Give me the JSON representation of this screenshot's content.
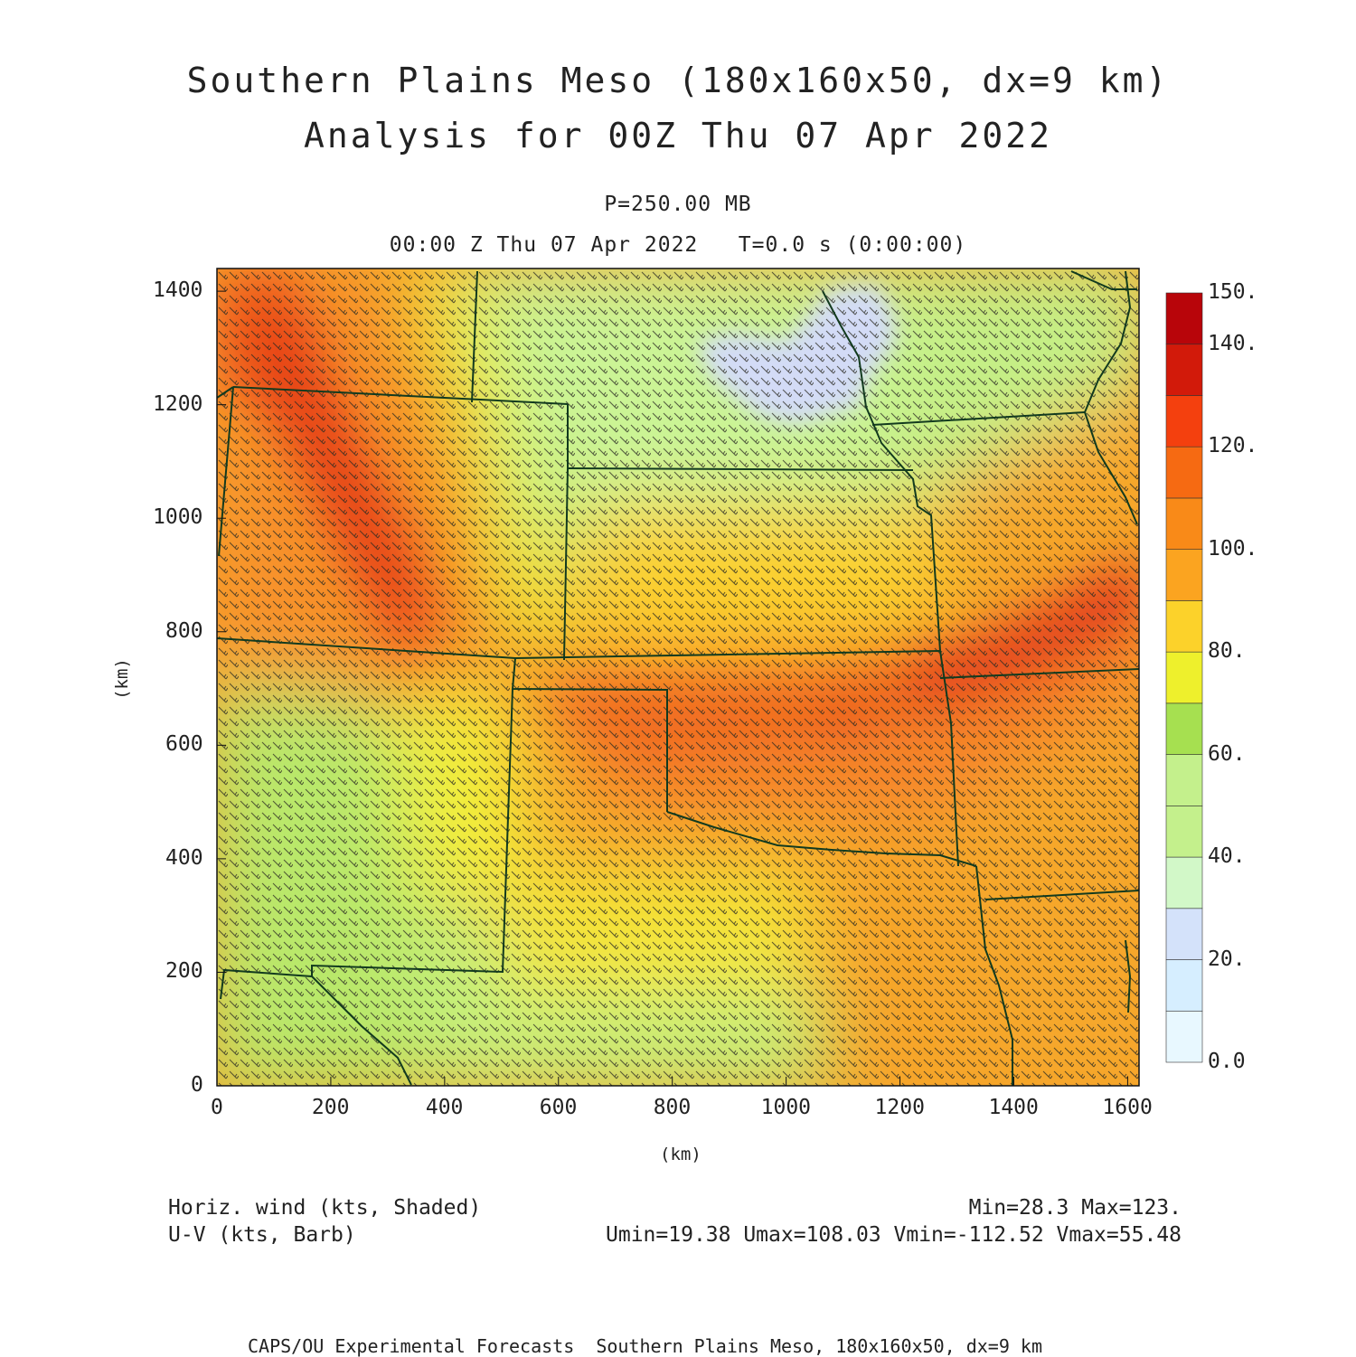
{
  "title": {
    "line1": "Southern Plains Meso (180x160x50, dx=9 km)",
    "line2": "Analysis for 00Z Thu 07 Apr 2022"
  },
  "level": "P=250.00 MB",
  "time": "00:00 Z Thu 07 Apr 2022   T=0.0 s (0:00:00)",
  "axes": {
    "x_label": "(km)",
    "y_label": "(km)",
    "x_ticks": [
      "0",
      "200",
      "400",
      "600",
      "800",
      "1000",
      "1200",
      "1400",
      "1600"
    ],
    "y_ticks": [
      "0",
      "200",
      "400",
      "600",
      "800",
      "1000",
      "1200",
      "1400"
    ],
    "x_range": [
      0,
      1620
    ],
    "y_range": [
      0,
      1440
    ]
  },
  "colorbar": {
    "labels": [
      "0.0",
      "20.",
      "40.",
      "60.",
      "80.",
      "100.",
      "120.",
      "140.",
      "150."
    ],
    "colors": [
      "#e8f8ff",
      "#d6eeff",
      "#d4e2fa",
      "#d2f8c8",
      "#c4f08c",
      "#a6e050",
      "#eef02c",
      "#fcd22a",
      "#fba420",
      "#f98a18",
      "#f66a12",
      "#f4400e",
      "#d21a0a",
      "#b8050a"
    ]
  },
  "field_colors": {
    "green_light": "#c9f390",
    "green": "#a8e15a",
    "yellow": "#f2f135",
    "gold": "#fbc92b",
    "orange": "#f98b1c",
    "orange_red": "#f46018",
    "red": "#e8401a",
    "lavender": "#d3dbf6"
  },
  "borders_color": "#123a1e",
  "footer": {
    "left1": "Horiz. wind (kts, Shaded)",
    "left2": "U-V (kts, Barb)",
    "right1": "Min=28.3 Max=123.",
    "right2": "Umin=19.38 Umax=108.03 Vmin=-112.52 Vmax=55.48",
    "credit": "CAPS/OU Experimental Forecasts  Southern Plains Meso, 180x160x50, dx=9 km"
  }
}
